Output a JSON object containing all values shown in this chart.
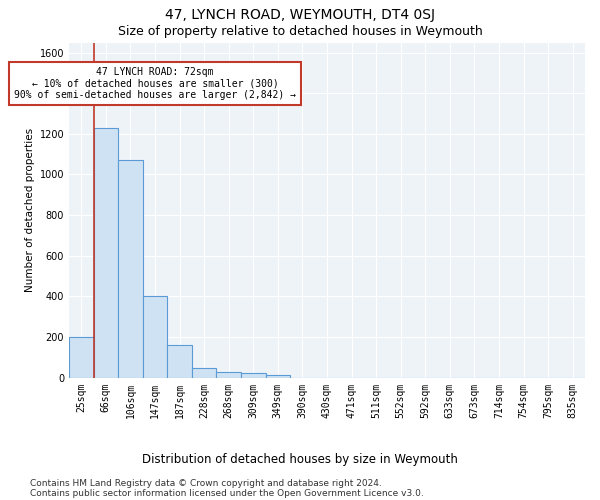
{
  "title": "47, LYNCH ROAD, WEYMOUTH, DT4 0SJ",
  "subtitle": "Size of property relative to detached houses in Weymouth",
  "xlabel": "Distribution of detached houses by size in Weymouth",
  "ylabel": "Number of detached properties",
  "categories": [
    "25sqm",
    "66sqm",
    "106sqm",
    "147sqm",
    "187sqm",
    "228sqm",
    "268sqm",
    "309sqm",
    "349sqm",
    "390sqm",
    "430sqm",
    "471sqm",
    "511sqm",
    "552sqm",
    "592sqm",
    "633sqm",
    "673sqm",
    "714sqm",
    "754sqm",
    "795sqm",
    "835sqm"
  ],
  "values": [
    200,
    1230,
    1070,
    400,
    160,
    45,
    25,
    22,
    14,
    0,
    0,
    0,
    0,
    0,
    0,
    0,
    0,
    0,
    0,
    0,
    0
  ],
  "bar_color": "#cfe2f3",
  "bar_edge_color": "#5b9bd5",
  "bar_edge_width": 0.8,
  "property_line_color": "#c0392b",
  "property_line_x": 0.5,
  "annotation_text": "47 LYNCH ROAD: 72sqm\n← 10% of detached houses are smaller (300)\n90% of semi-detached houses are larger (2,842) →",
  "annotation_box_facecolor": "#ffffff",
  "annotation_box_edgecolor": "#c0392b",
  "ylim": [
    0,
    1650
  ],
  "yticks": [
    0,
    200,
    400,
    600,
    800,
    1000,
    1200,
    1400,
    1600
  ],
  "background_color": "#ffffff",
  "plot_bg_color": "#eef3f8",
  "grid_color": "#ffffff",
  "footnote1": "Contains HM Land Registry data © Crown copyright and database right 2024.",
  "footnote2": "Contains public sector information licensed under the Open Government Licence v3.0.",
  "title_fontsize": 10,
  "subtitle_fontsize": 9,
  "xlabel_fontsize": 8.5,
  "ylabel_fontsize": 7.5,
  "tick_fontsize": 7,
  "annotation_fontsize": 7,
  "footnote_fontsize": 6.5
}
